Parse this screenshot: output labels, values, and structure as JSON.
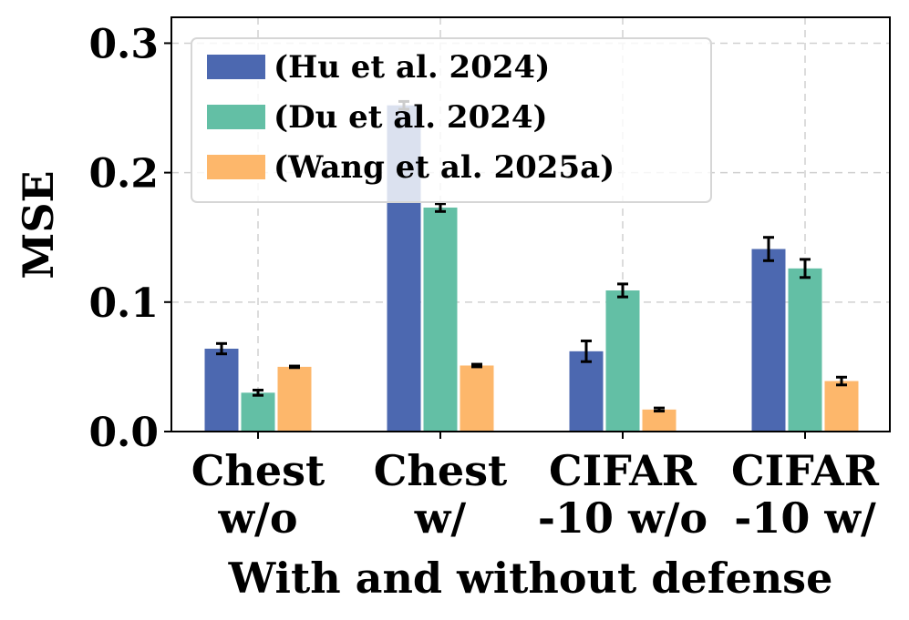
{
  "chart_data": {
    "type": "bar",
    "title": "",
    "xlabel": "With and without defense",
    "ylabel": "MSE",
    "ylim": [
      0,
      0.32
    ],
    "yticks": [
      0.0,
      0.1,
      0.2,
      0.3
    ],
    "ytick_labels": [
      "0.0",
      "0.1",
      "0.2",
      "0.3"
    ],
    "grid": true,
    "legend_position": "top-left",
    "categories": [
      [
        "Chest",
        "w/o"
      ],
      [
        "Chest",
        "w/"
      ],
      [
        "CIFAR",
        "-10 w/o"
      ],
      [
        "CIFAR",
        "-10 w/"
      ]
    ],
    "series": [
      {
        "name": "(Hu et al. 2024)",
        "color": "#4c68b0",
        "values": [
          0.064,
          0.252,
          0.062,
          0.141
        ],
        "errors": [
          0.004,
          0.003,
          0.008,
          0.009
        ]
      },
      {
        "name": "(Du et al. 2024)",
        "color": "#63bfa5",
        "values": [
          0.03,
          0.173,
          0.109,
          0.126
        ],
        "errors": [
          0.002,
          0.003,
          0.005,
          0.007
        ]
      },
      {
        "name": "(Wang et al. 2025a)",
        "color": "#fdb76b",
        "values": [
          0.05,
          0.051,
          0.017,
          0.039
        ],
        "errors": [
          0.0006,
          0.001,
          0.0012,
          0.003
        ]
      }
    ]
  }
}
